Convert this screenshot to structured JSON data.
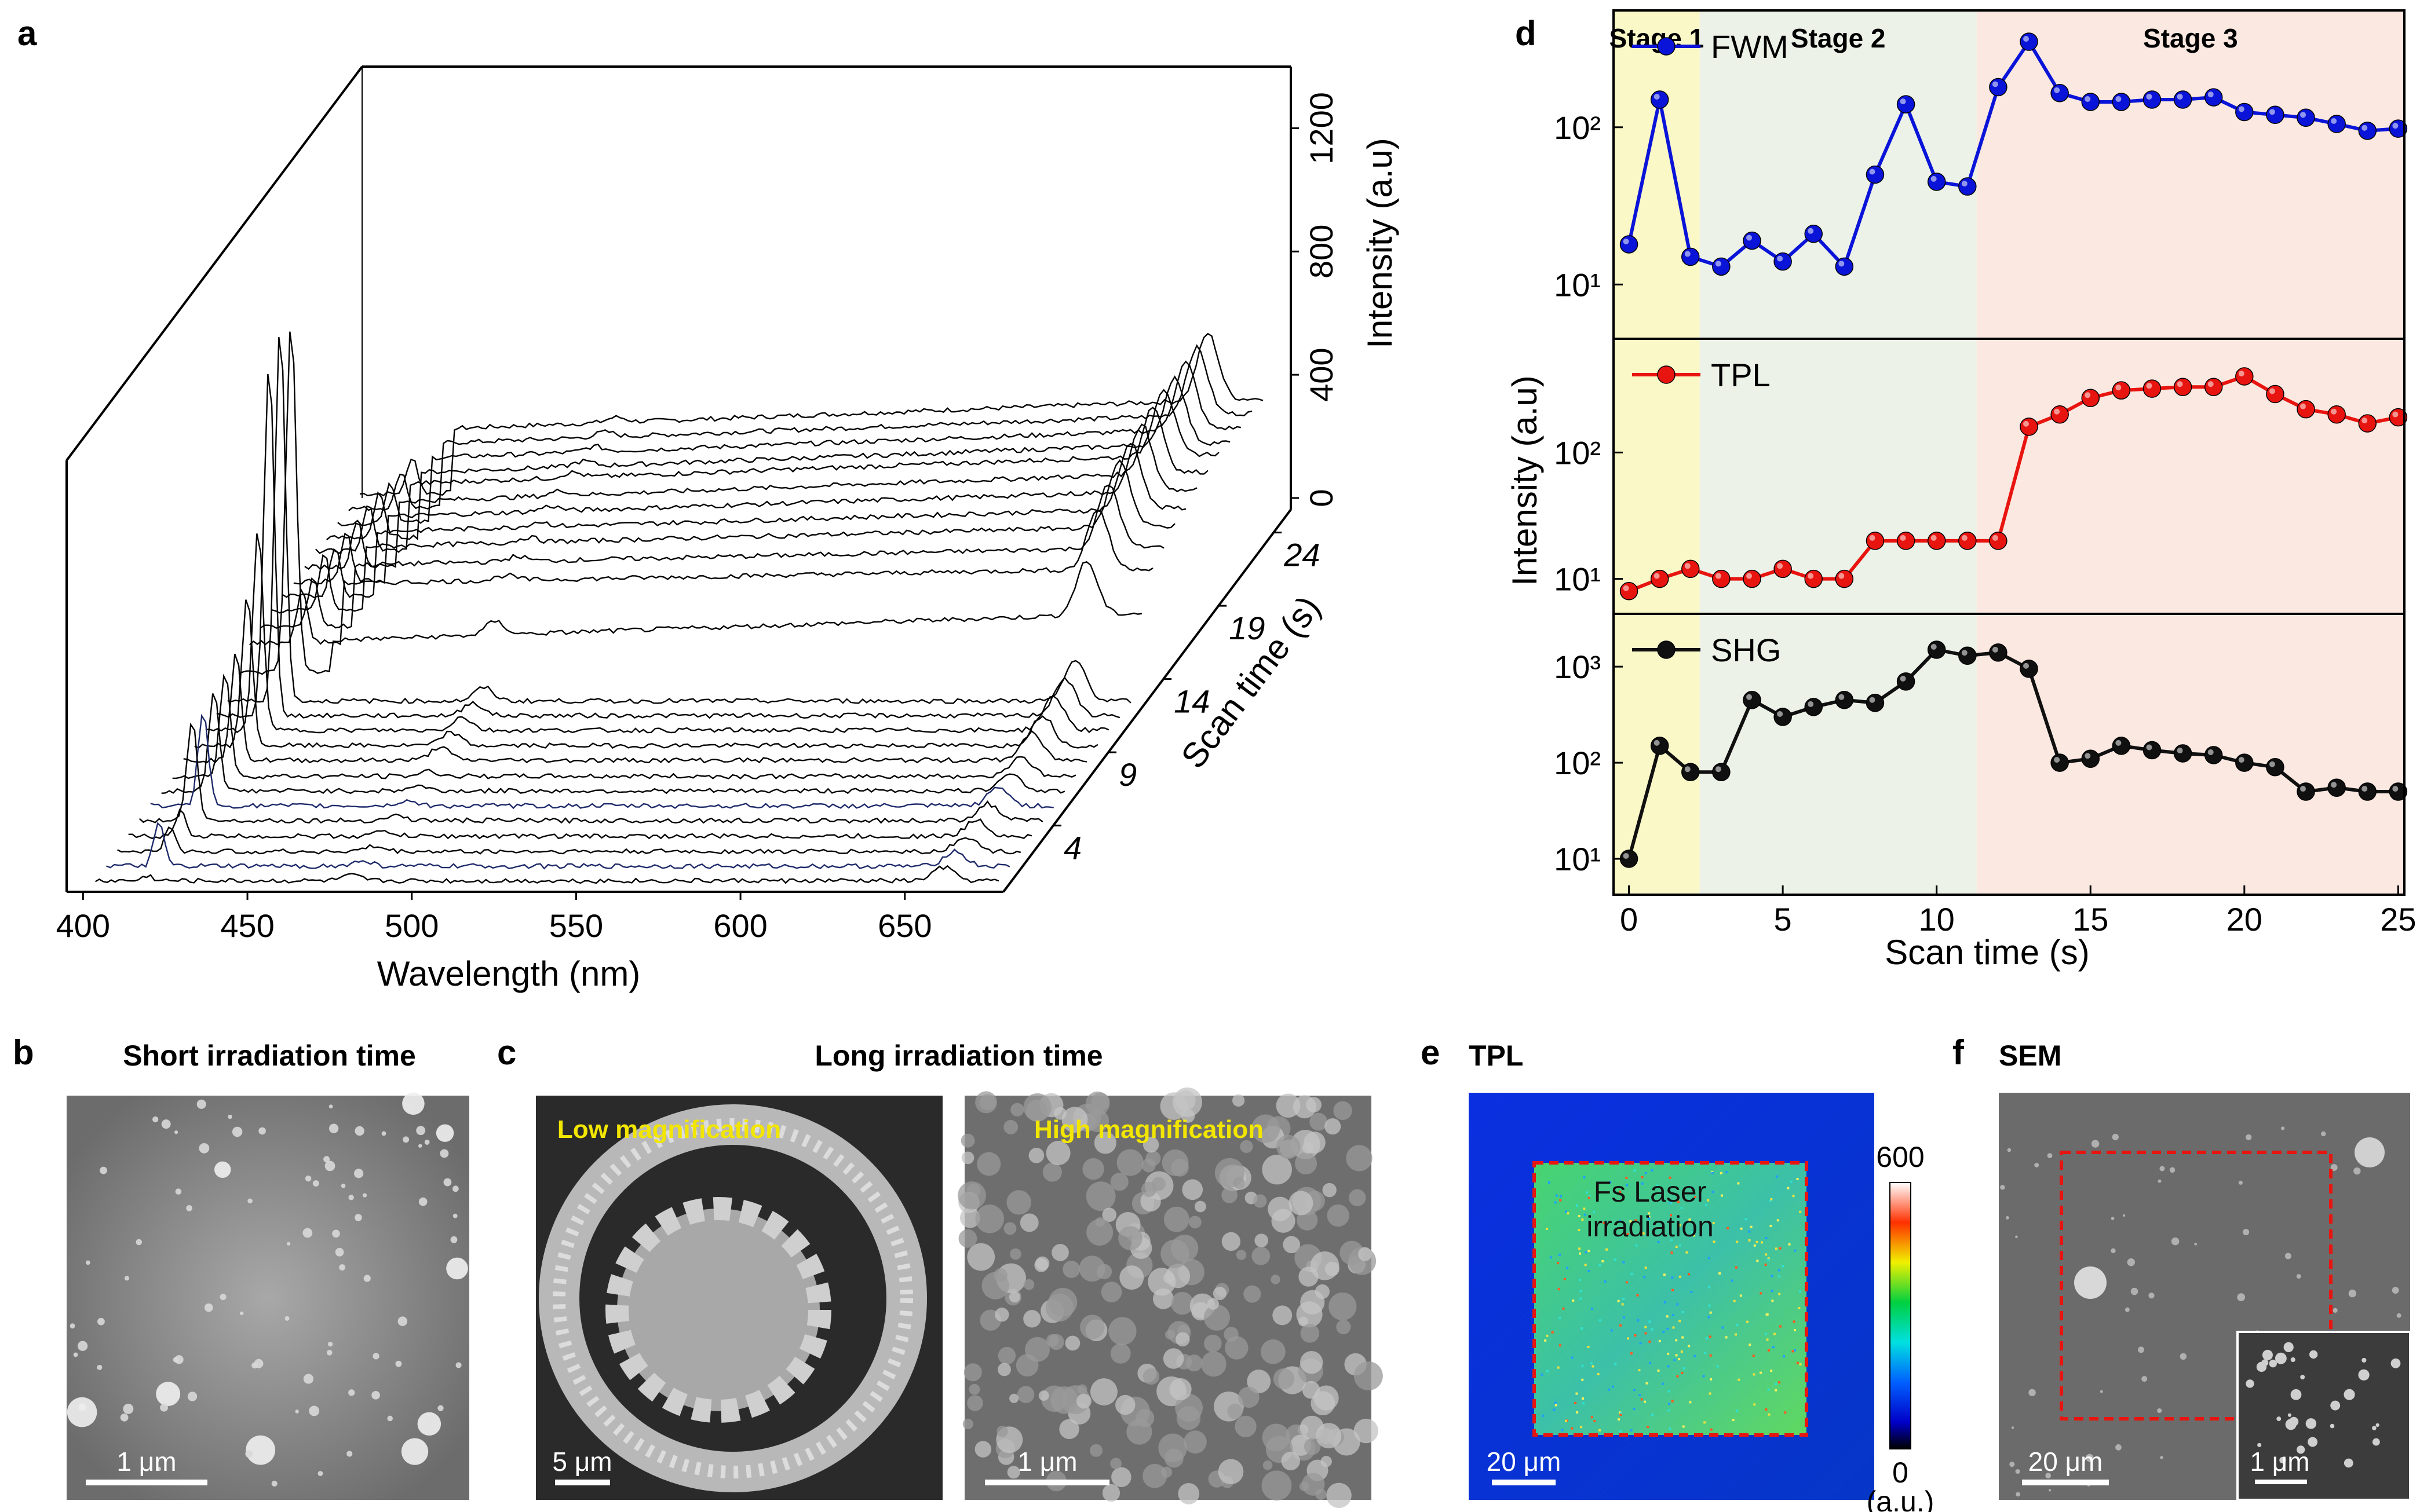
{
  "panels": {
    "a": {
      "label": "a"
    },
    "b": {
      "label": "b",
      "title": "Short irradiation time",
      "scale_text": "1 μm"
    },
    "c": {
      "label": "c",
      "title": "Long irradiation time",
      "left_caption": "Low magnification",
      "right_caption": "High magnification",
      "left_scale": "5 μm",
      "right_scale": "1 μm"
    },
    "d": {
      "label": "d"
    },
    "e": {
      "label": "e",
      "title": "TPL",
      "region_text_1": "Fs Laser",
      "region_text_2": "irradiation",
      "scale_text": "20 μm",
      "colorbar_max": "600",
      "colorbar_min": "0",
      "colorbar_unit": "(a.u.)"
    },
    "f": {
      "label": "f",
      "title": "SEM",
      "scale_text": "20 μm",
      "inset_scale": "1 μm"
    }
  },
  "chart_data": [
    {
      "panel": "a",
      "type": "line",
      "title": "",
      "xlabel": "Wavelength (nm)",
      "ylabel": "Intensity (a.u)",
      "zlabel": "Scan time (s)",
      "x_ticks": [
        400,
        450,
        500,
        550,
        600,
        650
      ],
      "xlim": [
        395,
        680
      ],
      "z_ticks": [
        4,
        9,
        14,
        19,
        24
      ],
      "zlim": [
        0,
        24
      ],
      "y_ticks": [
        0,
        400,
        800,
        1200
      ],
      "ylim": [
        0,
        1400
      ],
      "peaks_nm": [
        418,
        480,
        660
      ],
      "scan_times": [
        0,
        1,
        2,
        3,
        4,
        5,
        6,
        7,
        8,
        9,
        10,
        11,
        12,
        13,
        14,
        15,
        16,
        17,
        18,
        19,
        20,
        21,
        22,
        23,
        24
      ],
      "shg_peak_heights": [
        15,
        130,
        70,
        75,
        300,
        280,
        300,
        310,
        320,
        450,
        600,
        1050,
        1120,
        1050,
        160,
        150,
        170,
        150,
        145,
        140,
        140,
        130,
        120,
        110,
        110
      ],
      "baselines_430": [
        10,
        10,
        10,
        12,
        15,
        15,
        16,
        16,
        20,
        20,
        22,
        22,
        22,
        150,
        280,
        290,
        300,
        300,
        300,
        300,
        310,
        300,
        300,
        300,
        300
      ],
      "baselines_640": [
        10,
        10,
        10,
        12,
        15,
        15,
        16,
        16,
        20,
        20,
        22,
        22,
        22,
        240,
        330,
        350,
        370,
        380,
        390,
        400,
        410,
        400,
        400,
        400,
        400
      ],
      "right_peak_heights": [
        40,
        45,
        45,
        48,
        50,
        55,
        55,
        60,
        80,
        90,
        100,
        110,
        120,
        160,
        180,
        190,
        200,
        200,
        200,
        200,
        200,
        200,
        200,
        200,
        200
      ],
      "blue_traces": [
        1,
        5
      ]
    },
    {
      "panel": "d",
      "type": "line",
      "xlabel": "Scan time (s)",
      "ylabel": "Intensity (a.u)",
      "x_ticks": [
        0,
        5,
        10,
        15,
        20,
        25
      ],
      "xlim": [
        -0.5,
        25.2
      ],
      "stages": [
        {
          "name": "Stage 1",
          "start": -0.5,
          "end": 2.3,
          "color": "#fbf8c8"
        },
        {
          "name": "Stage 2",
          "start": 2.3,
          "end": 11.3,
          "color": "#ecf2e8"
        },
        {
          "name": "Stage 3",
          "start": 11.3,
          "end": 25.2,
          "color": "#fbe8e0"
        }
      ],
      "series": [
        {
          "name": "FWM",
          "color": "#0a14d8",
          "scale": "log",
          "ylim": [
            5,
            500
          ],
          "y_ticks": [
            10,
            100
          ],
          "y_tick_labels": [
            "10¹",
            "10²"
          ],
          "x": [
            0,
            1,
            2,
            3,
            4,
            5,
            6,
            7,
            8,
            9,
            10,
            11,
            12,
            13,
            14,
            15,
            16,
            17,
            18,
            19,
            20,
            21,
            22,
            23,
            24,
            25
          ],
          "values": [
            18,
            150,
            15,
            13,
            19,
            14,
            21,
            13,
            50,
            140,
            45,
            42,
            180,
            350,
            165,
            145,
            145,
            150,
            150,
            155,
            125,
            120,
            115,
            105,
            95,
            98
          ]
        },
        {
          "name": "TPL",
          "color": "#e8140f",
          "scale": "log",
          "ylim": [
            6,
            700
          ],
          "y_ticks": [
            10,
            100
          ],
          "y_tick_labels": [
            "10¹",
            "10²"
          ],
          "x": [
            0,
            1,
            2,
            3,
            4,
            5,
            6,
            7,
            8,
            9,
            10,
            11,
            12,
            13,
            14,
            15,
            16,
            17,
            18,
            19,
            20,
            21,
            22,
            23,
            24,
            25
          ],
          "values": [
            8,
            10,
            12,
            10,
            10,
            12,
            10,
            10,
            20,
            20,
            20,
            20,
            20,
            160,
            200,
            270,
            310,
            320,
            330,
            330,
            400,
            290,
            220,
            200,
            170,
            190
          ]
        },
        {
          "name": "SHG",
          "color": "#101010",
          "scale": "log",
          "ylim": [
            5,
            3000
          ],
          "y_ticks": [
            10,
            100,
            1000
          ],
          "y_tick_labels": [
            "10¹",
            "10²",
            "10³"
          ],
          "x": [
            0,
            1,
            2,
            3,
            4,
            5,
            6,
            7,
            8,
            9,
            10,
            11,
            12,
            13,
            14,
            15,
            16,
            17,
            18,
            19,
            20,
            21,
            22,
            23,
            24,
            25
          ],
          "values": [
            10,
            150,
            80,
            80,
            450,
            300,
            380,
            450,
            420,
            700,
            1500,
            1300,
            1400,
            950,
            100,
            110,
            150,
            135,
            125,
            120,
            100,
            90,
            50,
            55,
            50,
            50
          ]
        }
      ]
    },
    {
      "panel": "e",
      "type": "heatmap",
      "title": "TPL",
      "zlim": [
        0,
        600
      ],
      "colorbar_ticks": [
        600,
        0
      ],
      "colorbar_label": "(a.u.)"
    }
  ]
}
